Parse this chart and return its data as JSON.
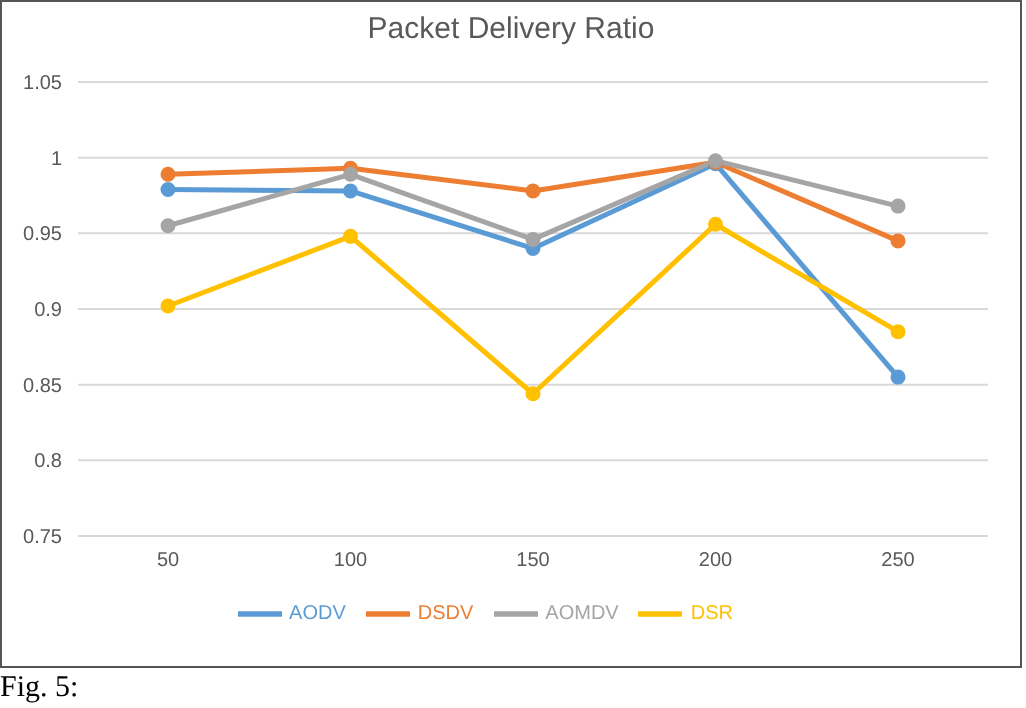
{
  "chart_data": {
    "type": "line",
    "title": "Packet Delivery Ratio",
    "categories": [
      "50",
      "100",
      "150",
      "200",
      "250"
    ],
    "series": [
      {
        "name": "AODV",
        "color": "#5b9bd5",
        "values": [
          0.979,
          0.978,
          0.94,
          0.996,
          0.855
        ]
      },
      {
        "name": "DSDV",
        "color": "#ed7d31",
        "values": [
          0.989,
          0.993,
          0.978,
          0.997,
          0.945
        ]
      },
      {
        "name": "AOMDV",
        "color": "#a5a5a5",
        "values": [
          0.955,
          0.989,
          0.946,
          0.998,
          0.968
        ]
      },
      {
        "name": "DSR",
        "color": "#ffc000",
        "values": [
          0.902,
          0.948,
          0.844,
          0.956,
          0.885
        ]
      }
    ],
    "ylim": [
      0.75,
      1.05
    ],
    "yticks": [
      0.75,
      0.8,
      0.85,
      0.9,
      0.95,
      1,
      1.05
    ],
    "grid": "y",
    "legend": "bottom",
    "marker": "circle",
    "annotations": [
      "Fig. 5:"
    ]
  }
}
